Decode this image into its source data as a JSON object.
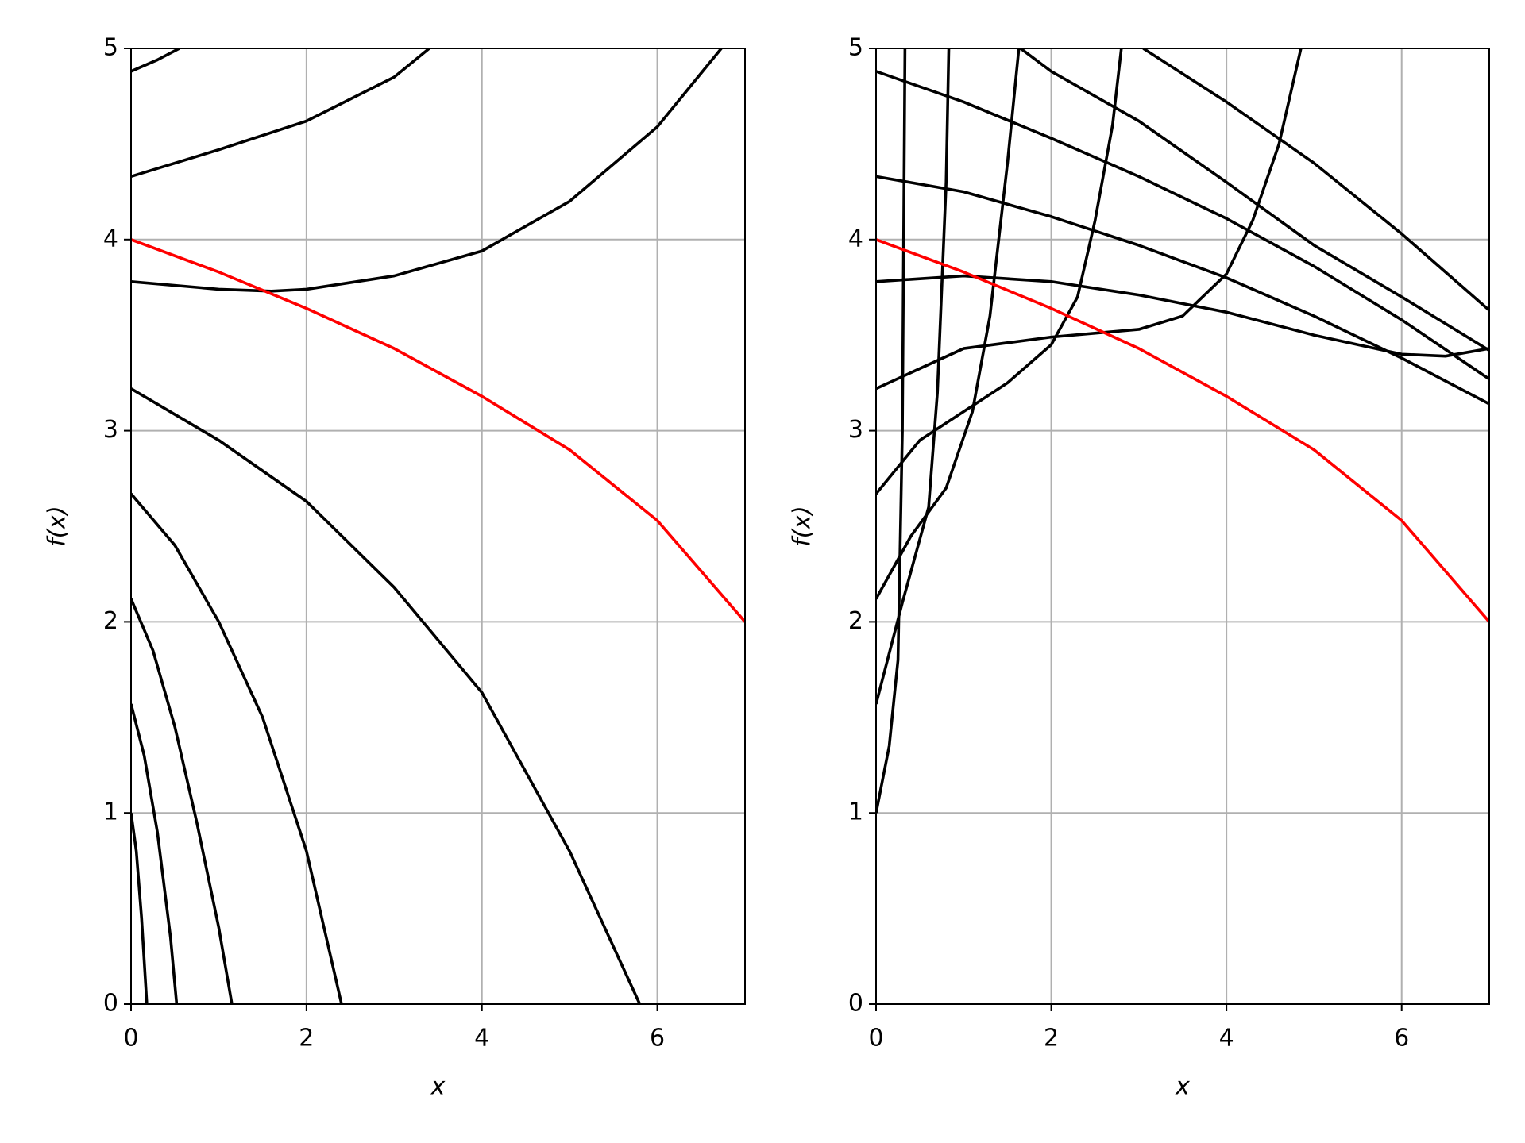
{
  "chart_data": [
    {
      "type": "line",
      "xlabel": "x",
      "ylabel": "f(x)",
      "xlim": [
        0,
        7
      ],
      "ylim": [
        0,
        5
      ],
      "xticks": [
        0,
        2,
        4,
        6
      ],
      "yticks": [
        0,
        1,
        2,
        3,
        4,
        5
      ],
      "grid": true,
      "series": [
        {
          "color": "#000000",
          "x": [
            0,
            0.3,
            0.55
          ],
          "values": [
            4.88,
            4.94,
            5.0
          ]
        },
        {
          "color": "#000000",
          "x": [
            0,
            1,
            2,
            3,
            3.4
          ],
          "values": [
            4.33,
            4.47,
            4.62,
            4.85,
            5.0
          ]
        },
        {
          "color": "#000000",
          "x": [
            0,
            1,
            1.6,
            2,
            3,
            4,
            5,
            6,
            6.73
          ],
          "values": [
            3.78,
            3.74,
            3.73,
            3.74,
            3.81,
            3.94,
            4.2,
            4.59,
            5.0
          ]
        },
        {
          "color": "#000000",
          "x": [
            0,
            1,
            2,
            3,
            4,
            5,
            5.8
          ],
          "values": [
            3.22,
            2.95,
            2.63,
            2.18,
            1.63,
            0.8,
            0
          ]
        },
        {
          "color": "#000000",
          "x": [
            0,
            0.5,
            1,
            1.5,
            2,
            2.4
          ],
          "values": [
            2.67,
            2.4,
            2.0,
            1.5,
            0.8,
            0
          ]
        },
        {
          "color": "#000000",
          "x": [
            0,
            0.25,
            0.5,
            0.75,
            1,
            1.15
          ],
          "values": [
            2.12,
            1.85,
            1.45,
            0.95,
            0.4,
            0
          ]
        },
        {
          "color": "#000000",
          "x": [
            0,
            0.15,
            0.3,
            0.45,
            0.52
          ],
          "values": [
            1.57,
            1.3,
            0.9,
            0.35,
            0
          ]
        },
        {
          "color": "#000000",
          "x": [
            0,
            0.06,
            0.12,
            0.18
          ],
          "values": [
            1,
            0.8,
            0.45,
            0
          ]
        },
        {
          "color": "#ff0000",
          "x": [
            0,
            1,
            2,
            3,
            4,
            5,
            6,
            7
          ],
          "values": [
            4.0,
            3.83,
            3.64,
            3.43,
            3.18,
            2.9,
            2.53,
            2.0
          ]
        }
      ]
    },
    {
      "type": "line",
      "xlabel": "x",
      "ylabel": "f(x)",
      "xlim": [
        0,
        7
      ],
      "ylim": [
        0,
        5
      ],
      "xticks": [
        0,
        2,
        4,
        6
      ],
      "yticks": [
        0,
        1,
        2,
        3,
        4,
        5
      ],
      "grid": true,
      "series": [
        {
          "color": "#000000",
          "x": [
            0,
            0.15,
            0.25,
            0.3,
            0.33
          ],
          "values": [
            1,
            1.35,
            1.8,
            3,
            5
          ]
        },
        {
          "color": "#000000",
          "x": [
            0,
            0.3,
            0.6,
            0.7,
            0.8,
            0.83
          ],
          "values": [
            1.57,
            2.1,
            2.6,
            3.2,
            4.3,
            5
          ]
        },
        {
          "color": "#000000",
          "x": [
            0,
            0.4,
            0.8,
            1.1,
            1.3,
            1.5,
            1.63
          ],
          "values": [
            2.12,
            2.45,
            2.7,
            3.1,
            3.6,
            4.4,
            5
          ]
        },
        {
          "color": "#000000",
          "x": [
            0,
            0.5,
            1,
            1.5,
            2,
            2.3,
            2.5,
            2.7,
            2.8
          ],
          "values": [
            2.67,
            2.95,
            3.1,
            3.25,
            3.45,
            3.7,
            4.1,
            4.6,
            5
          ]
        },
        {
          "color": "#000000",
          "x": [
            0,
            1,
            2,
            3,
            3.5,
            4,
            4.3,
            4.6,
            4.85
          ],
          "values": [
            3.22,
            3.43,
            3.49,
            3.53,
            3.6,
            3.82,
            4.1,
            4.5,
            5
          ]
        },
        {
          "color": "#000000",
          "x": [
            0,
            1,
            2,
            3,
            4,
            5,
            6,
            6.5,
            7
          ],
          "values": [
            3.78,
            3.81,
            3.78,
            3.71,
            3.62,
            3.5,
            3.4,
            3.39,
            3.43
          ]
        },
        {
          "color": "#000000",
          "x": [
            0,
            1,
            2,
            3,
            4,
            5,
            6,
            7
          ],
          "values": [
            4.33,
            4.25,
            4.12,
            3.97,
            3.8,
            3.6,
            3.38,
            3.14
          ]
        },
        {
          "color": "#000000",
          "x": [
            0,
            1,
            2,
            3,
            4,
            5,
            6,
            7
          ],
          "values": [
            4.88,
            4.72,
            4.53,
            4.33,
            4.11,
            3.86,
            3.58,
            3.27
          ]
        },
        {
          "color": "#000000",
          "x": [
            1.65,
            2,
            3,
            4,
            5,
            6,
            7
          ],
          "values": [
            5,
            4.88,
            4.62,
            4.3,
            3.97,
            3.7,
            3.42
          ]
        },
        {
          "color": "#000000",
          "x": [
            3.05,
            4,
            5,
            6,
            7
          ],
          "values": [
            5,
            4.72,
            4.4,
            4.03,
            3.63
          ]
        },
        {
          "color": "#ff0000",
          "x": [
            0,
            1,
            2,
            3,
            4,
            5,
            6,
            7
          ],
          "values": [
            4.0,
            3.83,
            3.64,
            3.43,
            3.18,
            2.9,
            2.53,
            2.0
          ]
        }
      ]
    }
  ]
}
